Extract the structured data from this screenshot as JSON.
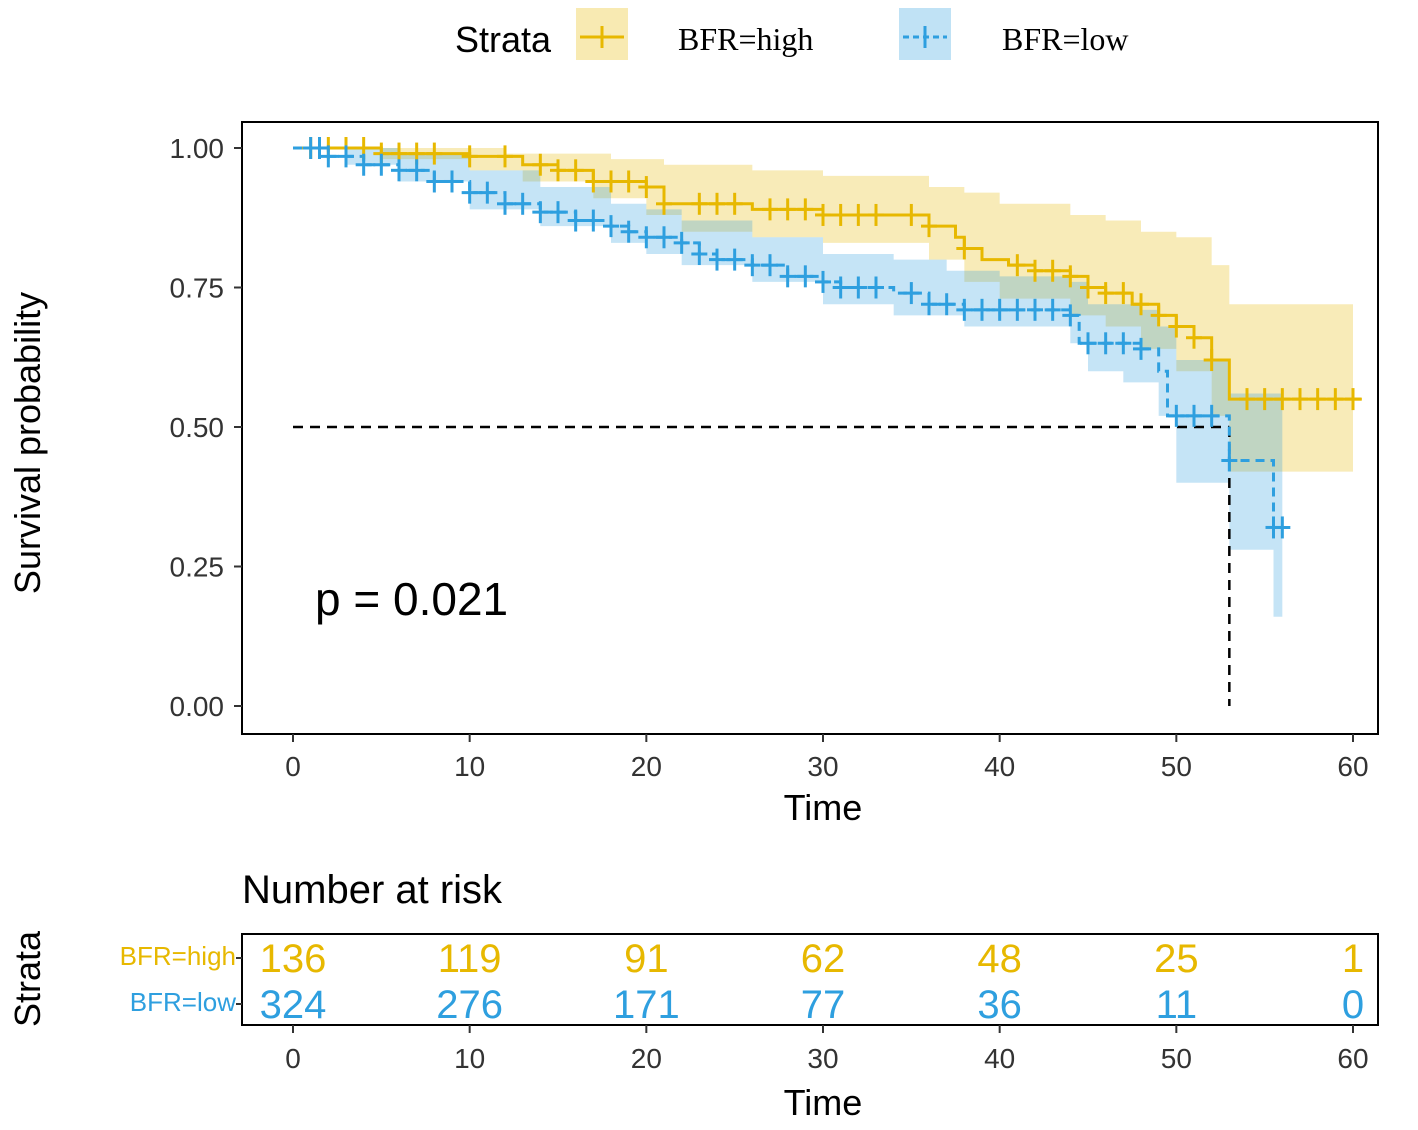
{
  "chart_data": {
    "type": "line",
    "subtype": "kaplan-meier",
    "legend": {
      "title": "Strata",
      "entries": [
        "BFR=high",
        "BFR=low"
      ],
      "position": "top"
    },
    "colors": {
      "high": "#E7B800",
      "low": "#2E9FDF"
    },
    "xlabel": "Time",
    "ylabel": "Survival probability",
    "xlim": [
      0,
      60
    ],
    "ylim": [
      0,
      1
    ],
    "x_ticks": [
      "0",
      "10",
      "20",
      "30",
      "40",
      "50",
      "60"
    ],
    "y_ticks": [
      "0.00",
      "0.25",
      "0.50",
      "0.75",
      "1.00"
    ],
    "annotation": "p = 0.021",
    "median_line": {
      "y": 0.5,
      "x": 53
    },
    "series": [
      {
        "name": "BFR=high",
        "steps": [
          [
            0,
            1.0
          ],
          [
            5,
            0.99
          ],
          [
            10,
            0.985
          ],
          [
            13,
            0.97
          ],
          [
            15,
            0.96
          ],
          [
            17,
            0.94
          ],
          [
            20,
            0.93
          ],
          [
            21,
            0.9
          ],
          [
            26,
            0.89
          ],
          [
            30,
            0.88
          ],
          [
            36,
            0.86
          ],
          [
            37.5,
            0.84
          ],
          [
            38,
            0.82
          ],
          [
            39,
            0.8
          ],
          [
            40.5,
            0.79
          ],
          [
            42,
            0.78
          ],
          [
            44,
            0.77
          ],
          [
            45,
            0.75
          ],
          [
            46,
            0.74
          ],
          [
            47.5,
            0.72
          ],
          [
            49,
            0.7
          ],
          [
            50,
            0.68
          ],
          [
            51,
            0.66
          ],
          [
            52,
            0.62
          ],
          [
            53,
            0.55
          ],
          [
            60.5,
            0.55
          ]
        ],
        "ci_upper": [
          [
            0,
            1.0
          ],
          [
            10,
            1.0
          ],
          [
            12,
            0.99
          ],
          [
            18,
            0.98
          ],
          [
            21,
            0.97
          ],
          [
            26,
            0.96
          ],
          [
            30,
            0.95
          ],
          [
            36,
            0.93
          ],
          [
            38,
            0.92
          ],
          [
            40,
            0.9
          ],
          [
            44,
            0.88
          ],
          [
            46,
            0.87
          ],
          [
            48,
            0.85
          ],
          [
            50,
            0.84
          ],
          [
            52,
            0.79
          ],
          [
            53,
            0.72
          ],
          [
            60,
            0.72
          ]
        ],
        "ci_lower": [
          [
            0,
            1.0
          ],
          [
            5,
            0.98
          ],
          [
            10,
            0.96
          ],
          [
            13,
            0.94
          ],
          [
            17,
            0.91
          ],
          [
            20,
            0.88
          ],
          [
            22,
            0.85
          ],
          [
            26,
            0.84
          ],
          [
            30,
            0.83
          ],
          [
            36,
            0.8
          ],
          [
            38,
            0.76
          ],
          [
            40,
            0.73
          ],
          [
            44,
            0.7
          ],
          [
            46,
            0.68
          ],
          [
            48,
            0.64
          ],
          [
            50,
            0.6
          ],
          [
            52,
            0.52
          ],
          [
            53,
            0.42
          ],
          [
            60,
            0.42
          ]
        ],
        "censor_times": [
          1,
          2,
          3,
          4,
          5,
          6,
          7,
          8,
          10,
          12,
          14,
          15,
          16,
          17,
          18,
          19,
          20,
          21,
          23,
          24,
          25,
          27,
          28,
          29,
          30,
          31,
          32,
          33,
          35,
          36,
          38,
          41,
          42,
          43,
          44,
          45,
          46,
          47,
          48,
          49,
          50,
          51,
          52,
          54,
          55,
          56,
          57,
          58,
          59,
          60
        ],
        "risk": [
          "136",
          "119",
          "91",
          "62",
          "48",
          "25",
          "1"
        ]
      },
      {
        "name": "BFR=low",
        "steps": [
          [
            0,
            1.0
          ],
          [
            2,
            0.985
          ],
          [
            4,
            0.97
          ],
          [
            6,
            0.96
          ],
          [
            8,
            0.94
          ],
          [
            10,
            0.92
          ],
          [
            12,
            0.9
          ],
          [
            14,
            0.885
          ],
          [
            16,
            0.87
          ],
          [
            18,
            0.86
          ],
          [
            19,
            0.85
          ],
          [
            20,
            0.84
          ],
          [
            22,
            0.83
          ],
          [
            23,
            0.81
          ],
          [
            24,
            0.8
          ],
          [
            26,
            0.79
          ],
          [
            28,
            0.77
          ],
          [
            30,
            0.76
          ],
          [
            31,
            0.75
          ],
          [
            34,
            0.74
          ],
          [
            36,
            0.72
          ],
          [
            38,
            0.71
          ],
          [
            44,
            0.7
          ],
          [
            44.5,
            0.65
          ],
          [
            48,
            0.64
          ],
          [
            49,
            0.6
          ],
          [
            49.5,
            0.52
          ],
          [
            52,
            0.52
          ],
          [
            53,
            0.44
          ],
          [
            55.5,
            0.44
          ],
          [
            55.5,
            0.32
          ],
          [
            56.5,
            0.32
          ]
        ],
        "ci_upper": [
          [
            0,
            1.0
          ],
          [
            3,
            1.0
          ],
          [
            6,
            0.99
          ],
          [
            10,
            0.96
          ],
          [
            14,
            0.93
          ],
          [
            18,
            0.9
          ],
          [
            20,
            0.89
          ],
          [
            22,
            0.87
          ],
          [
            26,
            0.84
          ],
          [
            30,
            0.81
          ],
          [
            34,
            0.8
          ],
          [
            37,
            0.78
          ],
          [
            40,
            0.77
          ],
          [
            44,
            0.76
          ],
          [
            45,
            0.72
          ],
          [
            48,
            0.71
          ],
          [
            49,
            0.68
          ],
          [
            50,
            0.62
          ],
          [
            52,
            0.62
          ],
          [
            53,
            0.56
          ],
          [
            56,
            0.56
          ]
        ],
        "ci_lower": [
          [
            0,
            1.0
          ],
          [
            3,
            0.97
          ],
          [
            6,
            0.94
          ],
          [
            10,
            0.89
          ],
          [
            14,
            0.86
          ],
          [
            18,
            0.83
          ],
          [
            20,
            0.81
          ],
          [
            22,
            0.79
          ],
          [
            26,
            0.76
          ],
          [
            30,
            0.72
          ],
          [
            34,
            0.7
          ],
          [
            38,
            0.68
          ],
          [
            44,
            0.65
          ],
          [
            45,
            0.6
          ],
          [
            47,
            0.58
          ],
          [
            49,
            0.52
          ],
          [
            50,
            0.4
          ],
          [
            52,
            0.4
          ],
          [
            53,
            0.28
          ],
          [
            55.5,
            0.28
          ],
          [
            55.5,
            0.16
          ],
          [
            56,
            0.16
          ]
        ],
        "censor_times": [
          1,
          1.5,
          2,
          3,
          4,
          5,
          6,
          7,
          8,
          9,
          10,
          11,
          12,
          13,
          14,
          15,
          16,
          17,
          18,
          19,
          20,
          21,
          22,
          23,
          24,
          25,
          26,
          27,
          28,
          29,
          30,
          31,
          32,
          33,
          35,
          36,
          37,
          38,
          39,
          40,
          41,
          42,
          43,
          44,
          45,
          46,
          47,
          48,
          50,
          51,
          52,
          53,
          55.5,
          56
        ],
        "risk": [
          "324",
          "276",
          "171",
          "77",
          "36",
          "11",
          "0"
        ]
      }
    ],
    "risk_table": {
      "title": "Number at risk",
      "ylabel": "Strata",
      "xlabel": "Time",
      "strata_labels": [
        "BFR=high",
        "BFR=low"
      ]
    }
  }
}
